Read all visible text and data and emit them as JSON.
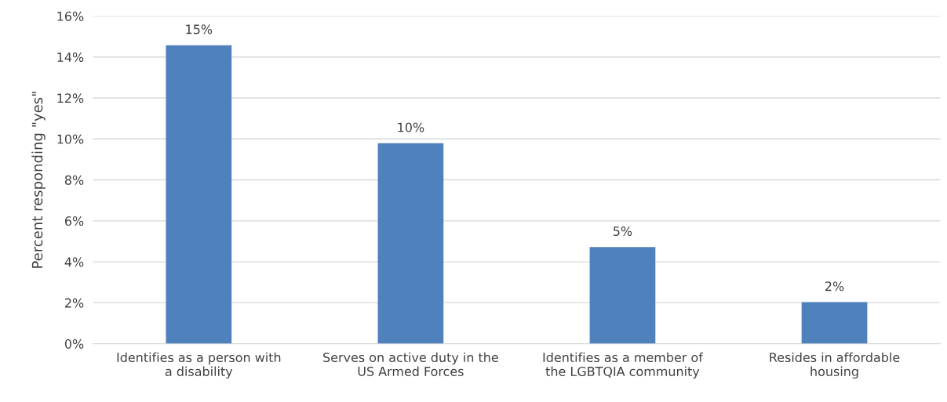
{
  "chart_data": {
    "type": "bar",
    "categories": [
      "Identifies as a person with a disability",
      "Serves on active duty in the US Armed Forces",
      "Identifies as a member of the LGBTQIA community",
      "Resides in affordable housing"
    ],
    "values": [
      14.58,
      9.79,
      4.72,
      2.03
    ],
    "value_labels": [
      "15%",
      "10%",
      "5%",
      "2%"
    ],
    "color": "#4f81bd",
    "ylabel": "Percent responding \"yes\"",
    "ylim": [
      0,
      16
    ],
    "yticks": [
      {
        "value": 0,
        "label": "0%"
      },
      {
        "value": 2,
        "label": "2%"
      },
      {
        "value": 4,
        "label": "4%"
      },
      {
        "value": 6,
        "label": "6%"
      },
      {
        "value": 8,
        "label": "8%"
      },
      {
        "value": 10,
        "label": "10%"
      },
      {
        "value": 12,
        "label": "12%"
      },
      {
        "value": 14,
        "label": "14%"
      },
      {
        "value": 16,
        "label": "16%"
      }
    ],
    "grid": "y"
  }
}
